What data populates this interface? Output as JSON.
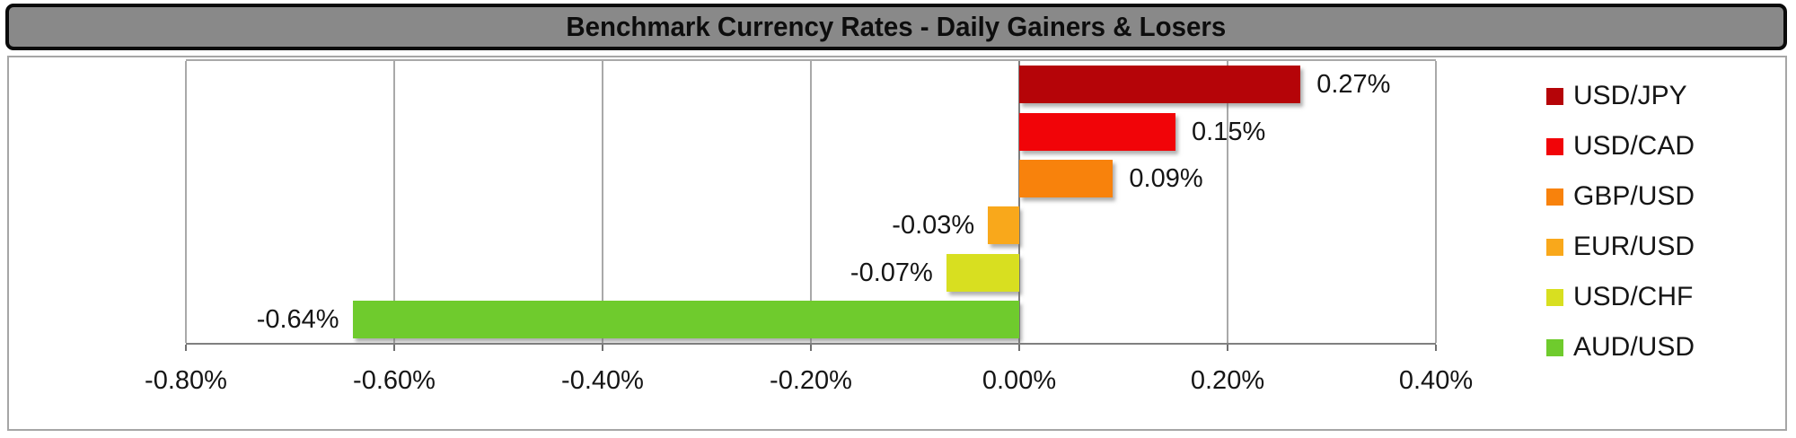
{
  "title": "Benchmark Currency Rates - Daily Gainers & Losers",
  "chart_data": {
    "type": "bar",
    "orientation": "horizontal",
    "title": "Benchmark Currency Rates - Daily Gainers & Losers",
    "categories": [
      "USD/JPY",
      "USD/CAD",
      "GBP/USD",
      "EUR/USD",
      "USD/CHF",
      "AUD/USD"
    ],
    "values": [
      0.27,
      0.15,
      0.09,
      -0.03,
      -0.07,
      -0.64
    ],
    "data_labels": [
      "0.27%",
      "0.15%",
      "0.09%",
      "-0.03%",
      "-0.07%",
      "-0.64%"
    ],
    "series_colors": [
      "#B50408",
      "#F10408",
      "#F8820C",
      "#F9A81B",
      "#D8DF20",
      "#6FCB2D"
    ],
    "x_axis": {
      "tick_labels": [
        "-0.80%",
        "-0.60%",
        "-0.40%",
        "-0.20%",
        "0.00%",
        "0.20%",
        "0.40%"
      ],
      "min": -0.8,
      "max": 0.4,
      "step": 0.2
    },
    "legend": {
      "position": "right",
      "entries": [
        "USD/JPY",
        "USD/CAD",
        "GBP/USD",
        "EUR/USD",
        "USD/CHF",
        "AUD/USD"
      ]
    },
    "grid": true,
    "colors": {
      "title_bar_bg": "#898989",
      "title_bar_border": "#0A0A0A",
      "title_text": "#0D0D0D",
      "chart_bg": "#FFFFFF",
      "chart_border": "#A6A6A6",
      "gridline": "#A9A9A9",
      "zero_line": "#7F7F7F",
      "axis_line": "#808080",
      "label_text": "#151515"
    }
  }
}
